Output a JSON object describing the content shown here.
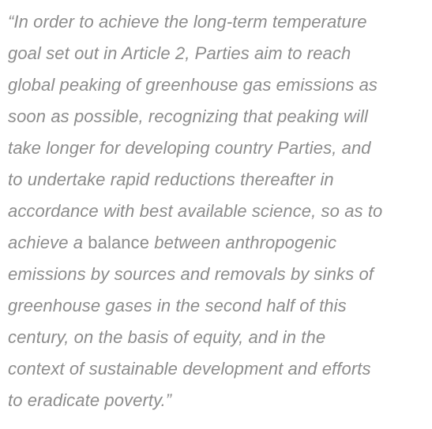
{
  "quote": {
    "lines": [
      "“In order to achieve the long-term temperature",
      "goal set out in Article 2, Parties aim to reach",
      "global peaking of greenhouse gas emissions as",
      "soon as possible, recognizing that peaking will",
      "take longer for developing country Parties, and",
      "to undertake rapid reductions thereafter in",
      "accordance with best available science, so as to",
      "emissions by sources and removals by sinks of",
      "greenhouse gases in the second half of this",
      "century, on the basis of equity, and in the",
      "context of sustainable development and efforts",
      "to eradicate poverty.”"
    ],
    "line8": {
      "before": "achieve a ",
      "upright": "balance",
      "after": " between anthropogenic"
    }
  }
}
